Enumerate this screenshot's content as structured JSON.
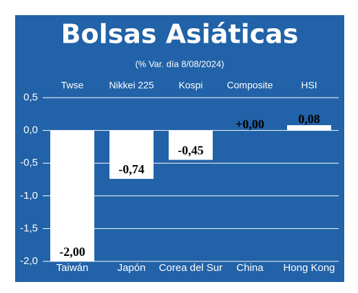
{
  "chart_data": {
    "type": "bar",
    "title": "Bolsas Asiáticas",
    "subtitle": "(% Var. día 8/08/2024)",
    "index_names": [
      "Twse",
      "Nikkei 225",
      "Kospi",
      "Composite",
      "HSI"
    ],
    "categories": [
      "Taiwán",
      "Japón",
      "Corea del Sur",
      "China",
      "Hong Kong"
    ],
    "values": [
      -2.0,
      -0.74,
      -0.45,
      0.0,
      0.08
    ],
    "value_labels": [
      "-2,00",
      "-0,74",
      "-0,45",
      "+0,00",
      "0,08"
    ],
    "color": "#ffffff",
    "ylim": [
      -2.0,
      0.5
    ],
    "yticks": [
      {
        "value": 0.5,
        "label": "0,5"
      },
      {
        "value": 0.0,
        "label": "0,0"
      },
      {
        "value": -0.5,
        "label": "-0,5"
      },
      {
        "value": -1.0,
        "label": "-1,0"
      },
      {
        "value": -1.5,
        "label": "-1,5"
      },
      {
        "value": -2.0,
        "label": "-2,0"
      }
    ],
    "grid": true
  }
}
